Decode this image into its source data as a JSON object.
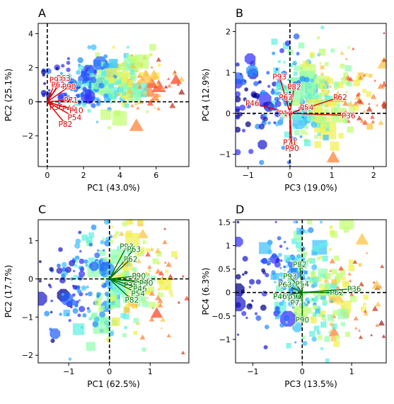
{
  "chart_data": [
    {
      "type": "scatter",
      "panel_label": "A",
      "xlabel": "PC1 (43.0%)",
      "ylabel": "PC2 (25.1%)",
      "xlim": [
        -0.5,
        7.8
      ],
      "ylim": [
        -3.8,
        4.6
      ],
      "xticks": [
        0,
        2,
        4,
        6
      ],
      "yticks": [
        -2,
        0,
        2,
        4
      ],
      "origin_lines": true,
      "vector_color": "#dd0000",
      "cloud": {
        "xc": 3.6,
        "yc": 1.1,
        "sx": 1.7,
        "sy": 0.9,
        "xmin": -0.2,
        "xmax": 7.4,
        "ymin": -1.6,
        "ymax": 3.2,
        "n": 340,
        "seed": 11
      },
      "vectors": [
        {
          "label": "P63",
          "x": 0.9,
          "y": 1.4
        },
        {
          "label": "P93",
          "x": 0.5,
          "y": 1.3
        },
        {
          "label": "P62",
          "x": 0.6,
          "y": 1.0
        },
        {
          "label": "P90",
          "x": 1.2,
          "y": 0.9
        },
        {
          "label": "P71",
          "x": 1.3,
          "y": 0.1
        },
        {
          "label": "P36",
          "x": 0.5,
          "y": -0.3
        },
        {
          "label": "P46",
          "x": 1.2,
          "y": -0.4
        },
        {
          "label": "P10",
          "x": 1.6,
          "y": -0.5
        },
        {
          "label": "P54",
          "x": 1.5,
          "y": -0.9
        },
        {
          "label": "P82",
          "x": 1.0,
          "y": -1.3
        }
      ]
    },
    {
      "type": "scatter",
      "panel_label": "B",
      "xlabel": "PC3 (19.0%)",
      "ylabel": "PC4 (12.9%)",
      "xlim": [
        -1.3,
        2.3
      ],
      "ylim": [
        -1.3,
        2.2
      ],
      "xticks": [
        -1,
        0,
        1,
        2
      ],
      "yticks": [
        -1,
        0,
        1,
        2
      ],
      "origin_lines": true,
      "vector_color": "#dd0000",
      "cloud": {
        "xc": 0.5,
        "yc": 0.4,
        "sx": 0.9,
        "sy": 0.6,
        "xmin": -1.25,
        "xmax": 2.25,
        "ymin": -1.2,
        "ymax": 2.1,
        "n": 330,
        "seed": 23
      },
      "vectors": [
        {
          "label": "P93",
          "x": -0.25,
          "y": 0.9
        },
        {
          "label": "P82",
          "x": 0.1,
          "y": 0.65
        },
        {
          "label": "P63",
          "x": -0.1,
          "y": 0.4
        },
        {
          "label": "P62",
          "x": 1.2,
          "y": 0.4
        },
        {
          "label": "P46",
          "x": -0.9,
          "y": 0.25
        },
        {
          "label": "P54",
          "x": 0.4,
          "y": 0.15
        },
        {
          "label": "P10",
          "x": -0.1,
          "y": 0.0
        },
        {
          "label": "P36",
          "x": 1.4,
          "y": -0.05
        },
        {
          "label": "P71",
          "x": 0.0,
          "y": -0.7
        },
        {
          "label": "P90",
          "x": 0.05,
          "y": -0.85
        }
      ]
    },
    {
      "type": "scatter",
      "panel_label": "C",
      "xlabel": "PC1 (62.5%)",
      "ylabel": "PC2 (17.7%)",
      "xlim": [
        -1.75,
        1.95
      ],
      "ylim": [
        -2.2,
        1.55
      ],
      "xticks": [
        -1,
        0,
        1
      ],
      "yticks": [
        -2,
        -1,
        0,
        1
      ],
      "origin_lines": true,
      "vector_color": "#007700",
      "cloud": {
        "xc": 0.1,
        "yc": -0.1,
        "sx": 0.75,
        "sy": 0.7,
        "xmin": -1.7,
        "xmax": 1.9,
        "ymin": -2.1,
        "ymax": 1.5,
        "n": 330,
        "seed": 37
      },
      "vectors": [
        {
          "label": "P93",
          "x": 0.42,
          "y": 0.85
        },
        {
          "label": "P63",
          "x": 0.6,
          "y": 0.78
        },
        {
          "label": "P62",
          "x": 0.52,
          "y": 0.52
        },
        {
          "label": "P90",
          "x": 0.72,
          "y": 0.08
        },
        {
          "label": "P71",
          "x": 0.82,
          "y": -0.07
        },
        {
          "label": "P10",
          "x": 0.9,
          "y": -0.1
        },
        {
          "label": "P36",
          "x": 0.52,
          "y": -0.16
        },
        {
          "label": "P46",
          "x": 0.75,
          "y": -0.25
        },
        {
          "label": "P54",
          "x": 0.7,
          "y": -0.38
        },
        {
          "label": "P82",
          "x": 0.55,
          "y": -0.55
        }
      ]
    },
    {
      "type": "scatter",
      "panel_label": "D",
      "xlabel": "PC3 (13.5%)",
      "ylabel": "PC4 (6.3%)",
      "xlim": [
        -1.35,
        1.7
      ],
      "ylim": [
        -1.5,
        1.55
      ],
      "xticks": [
        -1,
        0,
        1
      ],
      "yticks": [
        -1.0,
        -0.5,
        0.0,
        0.5,
        1.0,
        1.5
      ],
      "origin_lines": true,
      "vector_color": "#007700",
      "cloud": {
        "xc": 0.1,
        "yc": 0.1,
        "sx": 0.7,
        "sy": 0.6,
        "xmin": -1.3,
        "xmax": 1.65,
        "ymin": -1.45,
        "ymax": 1.5,
        "n": 330,
        "seed": 53
      },
      "vectors": [
        {
          "label": "P82",
          "x": -0.05,
          "y": 0.6
        },
        {
          "label": "P93",
          "x": -0.25,
          "y": 0.35
        },
        {
          "label": "P63",
          "x": -0.35,
          "y": 0.17
        },
        {
          "label": "P54",
          "x": 0.0,
          "y": 0.18
        },
        {
          "label": "P62",
          "x": 0.7,
          "y": 0.0
        },
        {
          "label": "P36",
          "x": 1.05,
          "y": 0.08
        },
        {
          "label": "P46",
          "x": -0.45,
          "y": -0.08
        },
        {
          "label": "P10",
          "x": -0.15,
          "y": -0.12
        },
        {
          "label": "P71",
          "x": -0.1,
          "y": -0.22
        },
        {
          "label": "P90",
          "x": 0.0,
          "y": -0.58
        }
      ]
    }
  ]
}
